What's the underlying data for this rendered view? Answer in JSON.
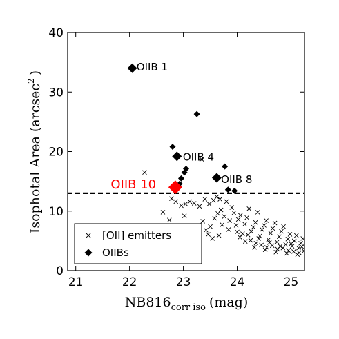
{
  "chart_data": {
    "type": "scatter",
    "xlabel_main": "NB816",
    "xlabel_sub": "corr iso",
    "xlabel_unit": "(mag)",
    "ylabel_main": "Isophotal Area",
    "ylabel_unit_open": "(arcsec",
    "ylabel_unit_sup": "2",
    "ylabel_unit_close": ")",
    "xlim": [
      20.85,
      25.25
    ],
    "ylim": [
      0,
      40
    ],
    "xticks": [
      {
        "value": 21,
        "label": "21"
      },
      {
        "value": 22,
        "label": "22"
      },
      {
        "value": 23,
        "label": "23"
      },
      {
        "value": 24,
        "label": "24"
      },
      {
        "value": 25,
        "label": "25"
      }
    ],
    "yticks": [
      {
        "value": 0,
        "label": "0"
      },
      {
        "value": 10,
        "label": "10"
      },
      {
        "value": 20,
        "label": "20"
      },
      {
        "value": 30,
        "label": "30"
      },
      {
        "value": 40,
        "label": "40"
      }
    ],
    "threshold_y": 13,
    "legend": {
      "placement": "lower-left",
      "entries": [
        {
          "label": "[OII] emitters",
          "marker": "x"
        },
        {
          "label": "OIIBs",
          "marker": "diamond"
        }
      ]
    },
    "series": [
      {
        "name": "[OII] emitters",
        "marker": "x",
        "color": "#000000",
        "points": [
          [
            22.28,
            16.5
          ],
          [
            22.78,
            12.1
          ],
          [
            22.86,
            11.6
          ],
          [
            22.96,
            10.9
          ],
          [
            23.04,
            11.2
          ],
          [
            23.12,
            11.6
          ],
          [
            23.2,
            11.3
          ],
          [
            23.3,
            10.8
          ],
          [
            23.4,
            12.0
          ],
          [
            23.48,
            11.2
          ],
          [
            23.56,
            11.8
          ],
          [
            23.62,
            12.4
          ],
          [
            23.68,
            12.0
          ],
          [
            23.34,
            18.7
          ],
          [
            22.62,
            9.8
          ],
          [
            22.74,
            8.5
          ],
          [
            23.02,
            9.2
          ],
          [
            23.1,
            7.2
          ],
          [
            23.22,
            6.4
          ],
          [
            23.36,
            8.3
          ],
          [
            23.42,
            6.8
          ],
          [
            23.5,
            7.4
          ],
          [
            23.58,
            8.8
          ],
          [
            23.64,
            9.6
          ],
          [
            23.7,
            10.2
          ],
          [
            23.76,
            9.1
          ],
          [
            23.8,
            11.6
          ],
          [
            23.86,
            8.4
          ],
          [
            23.9,
            10.6
          ],
          [
            23.94,
            9.7
          ],
          [
            23.98,
            7.6
          ],
          [
            24.02,
            8.6
          ],
          [
            24.06,
            9.3
          ],
          [
            24.1,
            6.2
          ],
          [
            24.14,
            7.8
          ],
          [
            24.18,
            8.9
          ],
          [
            24.22,
            10.4
          ],
          [
            24.26,
            6.6
          ],
          [
            24.3,
            7.3
          ],
          [
            24.34,
            8.1
          ],
          [
            24.38,
            9.8
          ],
          [
            24.42,
            5.8
          ],
          [
            24.46,
            6.9
          ],
          [
            24.5,
            7.6
          ],
          [
            24.54,
            8.4
          ],
          [
            24.58,
            5.2
          ],
          [
            24.62,
            6.3
          ],
          [
            24.66,
            7.1
          ],
          [
            24.7,
            8.0
          ],
          [
            24.74,
            4.8
          ],
          [
            24.78,
            5.7
          ],
          [
            24.82,
            6.6
          ],
          [
            24.86,
            7.4
          ],
          [
            24.9,
            4.4
          ],
          [
            24.94,
            5.3
          ],
          [
            24.98,
            6.1
          ],
          [
            25.02,
            4.1
          ],
          [
            25.06,
            5.0
          ],
          [
            25.1,
            5.9
          ],
          [
            25.14,
            3.8
          ],
          [
            25.18,
            4.6
          ],
          [
            25.22,
            5.4
          ],
          [
            24.05,
            5.6
          ],
          [
            24.15,
            4.9
          ],
          [
            24.25,
            5.1
          ],
          [
            24.35,
            4.6
          ],
          [
            24.45,
            4.3
          ],
          [
            24.55,
            3.9
          ],
          [
            24.65,
            4.2
          ],
          [
            24.75,
            3.6
          ],
          [
            24.85,
            3.8
          ],
          [
            24.95,
            3.4
          ],
          [
            25.05,
            3.2
          ],
          [
            25.15,
            3.0
          ],
          [
            25.24,
            3.3
          ],
          [
            24.6,
            4.7
          ],
          [
            24.8,
            4.1
          ],
          [
            25.0,
            4.5
          ],
          [
            25.2,
            4.0
          ],
          [
            24.4,
            5.4
          ],
          [
            24.2,
            6.0
          ],
          [
            24.0,
            6.5
          ],
          [
            23.84,
            6.9
          ],
          [
            23.72,
            7.7
          ],
          [
            23.66,
            5.9
          ],
          [
            23.54,
            5.4
          ],
          [
            23.46,
            6.1
          ],
          [
            23.28,
            5.2
          ],
          [
            23.16,
            5.8
          ],
          [
            22.98,
            6.2
          ],
          [
            24.52,
            3.5
          ],
          [
            24.72,
            3.1
          ],
          [
            24.92,
            2.9
          ],
          [
            25.12,
            2.7
          ],
          [
            24.32,
            3.9
          ]
        ]
      },
      {
        "name": "OIIBs",
        "marker": "diamond",
        "color": "#000000",
        "points": [
          [
            22.05,
            34.0
          ],
          [
            23.25,
            26.3
          ],
          [
            22.8,
            20.8
          ],
          [
            22.88,
            19.2
          ],
          [
            23.05,
            17.1
          ],
          [
            23.02,
            16.5
          ],
          [
            22.96,
            15.5
          ],
          [
            22.93,
            14.6
          ],
          [
            23.62,
            15.6
          ],
          [
            23.77,
            17.5
          ],
          [
            23.83,
            13.6
          ],
          [
            23.95,
            13.4
          ]
        ]
      },
      {
        "name": "OIIB 10",
        "marker": "diamond",
        "color": "#ff0000",
        "points": [
          [
            22.85,
            14.0
          ]
        ]
      }
    ],
    "annotations": [
      {
        "text": "OIIB 1",
        "x": 22.13,
        "y": 34.2,
        "color": "#000000",
        "size": "normal"
      },
      {
        "text": "OIIB 4",
        "x": 22.99,
        "y": 19.1,
        "color": "#000000",
        "size": "normal"
      },
      {
        "text": "OIIB 8",
        "x": 23.7,
        "y": 15.3,
        "color": "#000000",
        "size": "normal"
      },
      {
        "text": "OIIB 10",
        "x": 21.65,
        "y": 14.4,
        "color": "#ff0000",
        "size": "big"
      }
    ],
    "grid": false
  }
}
